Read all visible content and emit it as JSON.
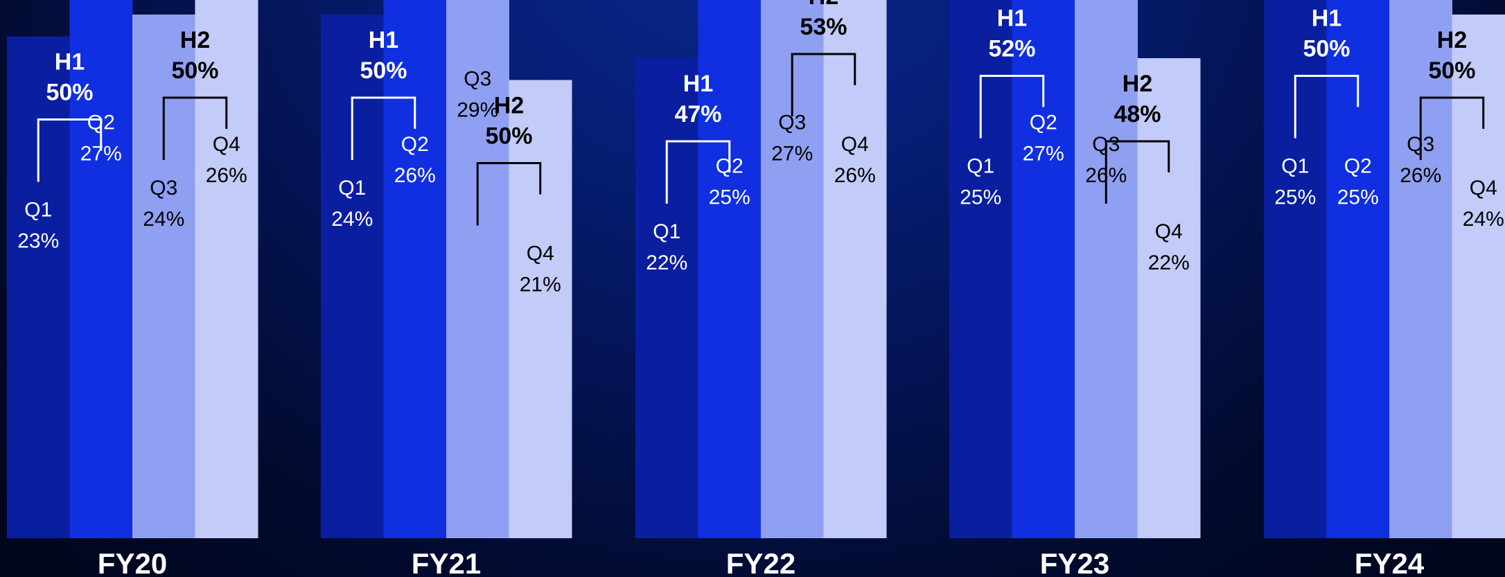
{
  "chart_data": {
    "type": "bar",
    "categories": [
      "FY20",
      "FY21",
      "FY22",
      "FY23",
      "FY24"
    ],
    "series": [
      {
        "name": "Q1",
        "values": [
          23,
          24,
          22,
          25,
          25
        ]
      },
      {
        "name": "Q2",
        "values": [
          27,
          26,
          25,
          27,
          25
        ]
      },
      {
        "name": "Q3",
        "values": [
          24,
          29,
          27,
          26,
          26
        ]
      },
      {
        "name": "Q4",
        "values": [
          26,
          21,
          26,
          22,
          24
        ]
      }
    ],
    "halves": [
      {
        "H1": 50,
        "H2": 50
      },
      {
        "H1": 50,
        "H2": 50
      },
      {
        "H1": 47,
        "H2": 53
      },
      {
        "H1": 52,
        "H2": 48
      },
      {
        "H1": 50,
        "H2": 50
      }
    ],
    "quarter_labels": [
      "Q1",
      "Q2",
      "Q3",
      "Q4"
    ],
    "half_labels": [
      "H1",
      "H2"
    ],
    "unit": "%",
    "colors": {
      "Q1": "#0a1fa0",
      "Q2": "#0f2fe0",
      "Q3": "#8fa0f2",
      "Q4": "#c3cbf8",
      "label_dark": "#000000",
      "label_light": "#ffffff"
    }
  }
}
